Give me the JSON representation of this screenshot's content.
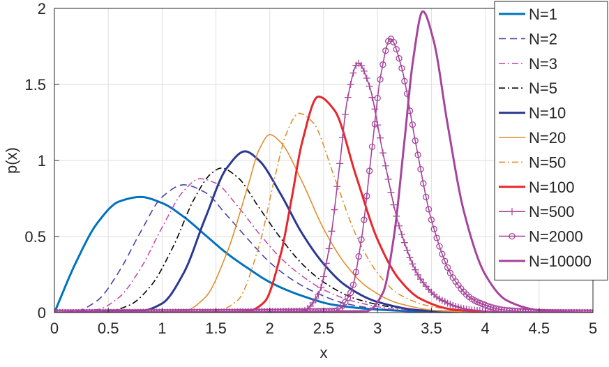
{
  "chart_data": {
    "type": "line",
    "xlabel": "x",
    "ylabel": "p(x)",
    "xlim": [
      0,
      5
    ],
    "ylim": [
      0,
      2
    ],
    "x_ticks": [
      0,
      0.5,
      1,
      1.5,
      2,
      2.5,
      3,
      3.5,
      4,
      4.5,
      5
    ],
    "x_tick_labels": [
      "0",
      "0.5",
      "1",
      "1.5",
      "2",
      "2.5",
      "3",
      "3.5",
      "4",
      "4.5",
      "5"
    ],
    "y_ticks": [
      0,
      0.5,
      1,
      1.5,
      2
    ],
    "y_tick_labels": [
      "0",
      "0.5",
      "1",
      "1.5",
      "2"
    ],
    "grid": true,
    "legend_position": "top-right",
    "series": [
      {
        "name": "N=1",
        "color": "#0072BD",
        "line_style": "solid",
        "marker": "none",
        "peak_x": 0.8,
        "peak_y": 0.76,
        "x_start": 0,
        "x_end": 5,
        "x": [
          0,
          0.2,
          0.4,
          0.6,
          0.8,
          1.0,
          1.2,
          1.4,
          1.6,
          1.8,
          2.0,
          2.3,
          2.6,
          3.0,
          3.5,
          4.0,
          5.0
        ],
        "y": [
          0,
          0.33,
          0.59,
          0.73,
          0.76,
          0.72,
          0.63,
          0.51,
          0.39,
          0.29,
          0.2,
          0.11,
          0.05,
          0.02,
          0.005,
          0.001,
          0
        ]
      },
      {
        "name": "N=2",
        "color": "#4444A8",
        "line_style": "dashed",
        "marker": "none",
        "peak_x": 1.2,
        "peak_y": 0.84,
        "x_start": 0,
        "x_end": 5,
        "x": [
          0,
          0.2,
          0.4,
          0.6,
          0.8,
          1.0,
          1.2,
          1.4,
          1.6,
          1.8,
          2.0,
          2.2,
          2.4,
          2.7,
          3.0,
          3.5,
          4.0,
          5.0
        ],
        "y": [
          0,
          0.01,
          0.08,
          0.27,
          0.53,
          0.76,
          0.84,
          0.79,
          0.64,
          0.48,
          0.33,
          0.22,
          0.14,
          0.06,
          0.025,
          0.005,
          0.001,
          0
        ]
      },
      {
        "name": "N=3",
        "color": "#C050B0",
        "line_style": "dashdot",
        "marker": "none",
        "peak_x": 1.35,
        "peak_y": 0.88,
        "x_start": 0,
        "x_end": 5,
        "x": [
          0,
          0.4,
          0.6,
          0.8,
          1.0,
          1.2,
          1.35,
          1.5,
          1.7,
          1.9,
          2.1,
          2.3,
          2.5,
          2.8,
          3.2,
          3.8,
          5.0
        ],
        "y": [
          0,
          0.02,
          0.1,
          0.29,
          0.56,
          0.8,
          0.88,
          0.85,
          0.7,
          0.52,
          0.36,
          0.24,
          0.15,
          0.07,
          0.02,
          0.003,
          0
        ]
      },
      {
        "name": "N=5",
        "color": "#000000",
        "line_style": "dashdot",
        "marker": "none",
        "peak_x": 1.55,
        "peak_y": 0.95,
        "x_start": 0,
        "x_end": 5,
        "x": [
          0,
          0.5,
          0.7,
          0.9,
          1.1,
          1.3,
          1.45,
          1.55,
          1.7,
          1.9,
          2.1,
          2.3,
          2.5,
          2.8,
          3.2,
          3.8,
          5.0
        ],
        "y": [
          0,
          0.01,
          0.05,
          0.18,
          0.43,
          0.75,
          0.91,
          0.95,
          0.89,
          0.69,
          0.49,
          0.32,
          0.2,
          0.09,
          0.03,
          0.004,
          0
        ]
      },
      {
        "name": "N=10",
        "color": "#2B3990",
        "line_style": "solid",
        "marker": "none",
        "peak_x": 1.77,
        "peak_y": 1.06,
        "x_start": 0,
        "x_end": 5,
        "x": [
          0,
          0.8,
          1.0,
          1.2,
          1.4,
          1.6,
          1.77,
          1.9,
          2.1,
          2.3,
          2.5,
          2.7,
          3.0,
          3.4,
          4.0,
          5.0
        ],
        "y": [
          0,
          0.01,
          0.06,
          0.26,
          0.62,
          0.95,
          1.06,
          1.0,
          0.78,
          0.52,
          0.32,
          0.18,
          0.07,
          0.015,
          0.002,
          0
        ]
      },
      {
        "name": "N=20",
        "color": "#E08E2B",
        "line_style": "solid",
        "marker": "none",
        "peak_x": 2.0,
        "peak_y": 1.17,
        "x_start": 0,
        "x_end": 5,
        "x": [
          0,
          1.2,
          1.4,
          1.6,
          1.8,
          1.9,
          2.0,
          2.1,
          2.3,
          2.5,
          2.7,
          2.9,
          3.2,
          3.6,
          4.2,
          5.0
        ],
        "y": [
          0,
          0.01,
          0.1,
          0.39,
          0.84,
          1.07,
          1.17,
          1.12,
          0.86,
          0.55,
          0.32,
          0.17,
          0.06,
          0.01,
          0.001,
          0
        ]
      },
      {
        "name": "N=50",
        "color": "#E08E2B",
        "line_style": "dashdot",
        "marker": "none",
        "peak_x": 2.27,
        "peak_y": 1.31,
        "x_start": 0,
        "x_end": 5,
        "x": [
          0,
          1.5,
          1.7,
          1.9,
          2.05,
          2.15,
          2.27,
          2.4,
          2.6,
          2.8,
          3.0,
          3.2,
          3.5,
          3.9,
          4.5,
          5.0
        ],
        "y": [
          0,
          0.01,
          0.08,
          0.44,
          0.9,
          1.17,
          1.31,
          1.25,
          0.89,
          0.51,
          0.26,
          0.12,
          0.04,
          0.008,
          0.001,
          0
        ]
      },
      {
        "name": "N=100",
        "color": "#E8262B",
        "line_style": "solid",
        "marker": "none",
        "peak_x": 2.45,
        "peak_y": 1.42,
        "x_start": 1.5,
        "x_end": 4,
        "x": [
          1.5,
          1.8,
          1.95,
          2.1,
          2.2,
          2.3,
          2.45,
          2.6,
          2.8,
          3.0,
          3.2,
          3.4,
          3.7,
          4.0
        ],
        "y": [
          0,
          0.01,
          0.07,
          0.38,
          0.74,
          1.12,
          1.42,
          1.33,
          0.9,
          0.48,
          0.22,
          0.09,
          0.02,
          0.005
        ]
      },
      {
        "name": "N=500",
        "color": "#A6449B",
        "line_style": "solid",
        "marker": "plus",
        "peak_x": 2.82,
        "peak_y": 1.64,
        "x_start": 0,
        "x_end": 5,
        "x": [
          0,
          2.3,
          2.45,
          2.55,
          2.65,
          2.72,
          2.82,
          2.92,
          3.05,
          3.2,
          3.4,
          3.6,
          3.85,
          4.2,
          5.0
        ],
        "y": [
          0,
          0.01,
          0.12,
          0.42,
          0.98,
          1.4,
          1.64,
          1.5,
          1.05,
          0.57,
          0.22,
          0.08,
          0.02,
          0.003,
          0
        ]
      },
      {
        "name": "N=2000",
        "color": "#A6449B",
        "line_style": "solid",
        "marker": "circle",
        "peak_x": 3.12,
        "peak_y": 1.8,
        "x_start": 0,
        "x_end": 5,
        "x": [
          0,
          2.6,
          2.75,
          2.85,
          2.95,
          3.03,
          3.12,
          3.22,
          3.35,
          3.5,
          3.7,
          3.9,
          4.2,
          4.6,
          5.0
        ],
        "y": [
          0,
          0.01,
          0.13,
          0.48,
          1.09,
          1.56,
          1.8,
          1.62,
          1.13,
          0.61,
          0.23,
          0.08,
          0.015,
          0.002,
          0
        ]
      },
      {
        "name": "N=10000",
        "color": "#A6449B",
        "line_style": "solid",
        "marker": "none",
        "peak_x": 3.42,
        "peak_y": 1.98,
        "x_start": 0,
        "x_end": 5,
        "x": [
          0,
          2.9,
          3.05,
          3.15,
          3.25,
          3.33,
          3.42,
          3.52,
          3.65,
          3.8,
          4.0,
          4.2,
          4.5,
          4.8,
          5.0
        ],
        "y": [
          0,
          0.01,
          0.13,
          0.49,
          1.13,
          1.66,
          1.98,
          1.79,
          1.24,
          0.67,
          0.25,
          0.08,
          0.015,
          0.002,
          0
        ]
      }
    ]
  }
}
